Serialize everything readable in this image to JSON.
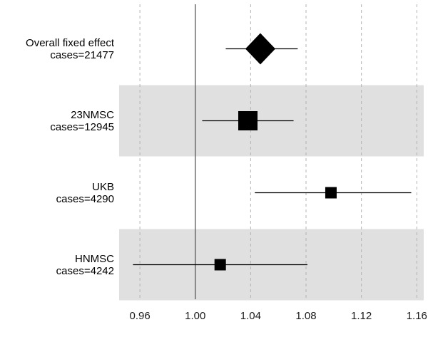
{
  "chart_data": {
    "type": "forest",
    "xlabel": "",
    "ylabel": "",
    "xlim": [
      0.945,
      1.165
    ],
    "x_ticks": [
      0.96,
      1.0,
      1.04,
      1.08,
      1.12,
      1.16
    ],
    "x_tick_labels": [
      "0.96",
      "1.00",
      "1.04",
      "1.08",
      "1.12",
      "1.16"
    ],
    "reference_line": 1.0,
    "grid": true,
    "alternating_row_shading": true,
    "rows": [
      {
        "name": "Overall fixed effect",
        "cases_label": "cases=21477",
        "cases": 21477,
        "estimate": 1.047,
        "ci_lower": 1.022,
        "ci_upper": 1.074,
        "marker": "diamond",
        "shaded": false
      },
      {
        "name": "23NMSC",
        "cases_label": "cases=12945",
        "cases": 12945,
        "estimate": 1.038,
        "ci_lower": 1.005,
        "ci_upper": 1.071,
        "marker": "square",
        "shaded": true
      },
      {
        "name": "UKB",
        "cases_label": "cases=4290",
        "cases": 4290,
        "estimate": 1.098,
        "ci_lower": 1.043,
        "ci_upper": 1.156,
        "marker": "square",
        "shaded": false
      },
      {
        "name": "HNMSC",
        "cases_label": "cases=4242",
        "cases": 4242,
        "estimate": 1.018,
        "ci_lower": 0.955,
        "ci_upper": 1.081,
        "marker": "square",
        "shaded": true
      }
    ],
    "colors": {
      "marker": "#000000",
      "shade": "#e0e0e0",
      "grid": "#b3b3b3",
      "reference": "#555555"
    }
  }
}
